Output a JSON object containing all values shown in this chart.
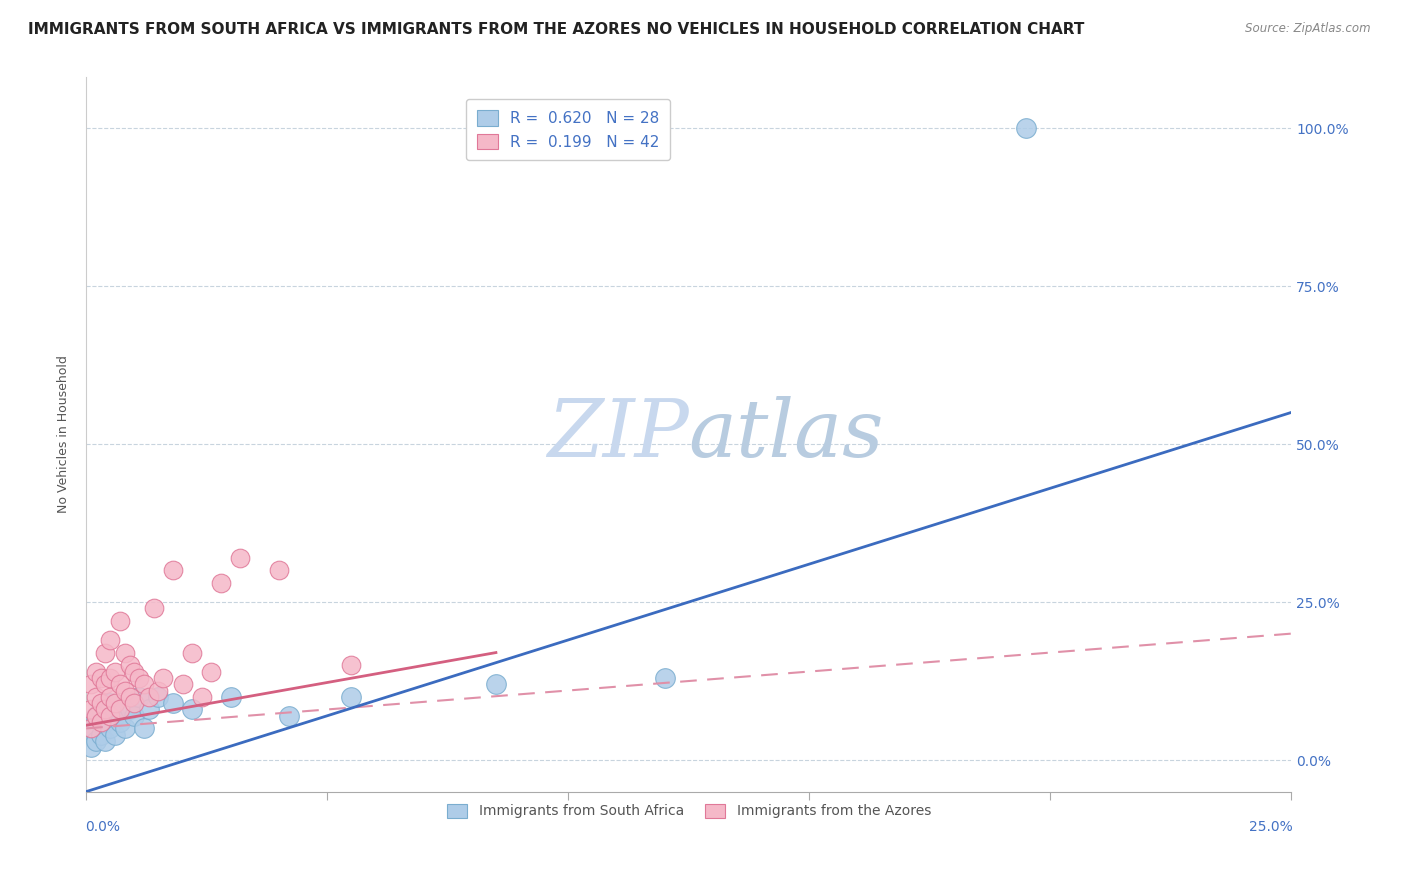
{
  "title": "IMMIGRANTS FROM SOUTH AFRICA VS IMMIGRANTS FROM THE AZORES NO VEHICLES IN HOUSEHOLD CORRELATION CHART",
  "source": "Source: ZipAtlas.com",
  "ylabel": "No Vehicles in Household",
  "ytick_labels": [
    "0.0%",
    "25.0%",
    "50.0%",
    "75.0%",
    "100.0%"
  ],
  "ytick_values": [
    0,
    0.25,
    0.5,
    0.75,
    1.0
  ],
  "xmin": 0.0,
  "xmax": 0.25,
  "ymin": -0.05,
  "ymax": 1.08,
  "legend_label_blue": "R =  0.620   N = 28",
  "legend_label_pink": "R =  0.199   N = 42",
  "legend_bottom_blue": "Immigrants from South Africa",
  "legend_bottom_pink": "Immigrants from the Azores",
  "blue_color": "#aecce8",
  "blue_edge": "#7aadcf",
  "pink_color": "#f5b8c8",
  "pink_edge": "#e07898",
  "blue_line_color": "#3b6bbf",
  "pink_line_color": "#d45f80",
  "pink_dash_color": "#e090a8",
  "watermark_color": "#dde8f5",
  "background_color": "#ffffff",
  "grid_color": "#c8d4de",
  "south_africa_x": [
    0.001,
    0.001,
    0.002,
    0.002,
    0.003,
    0.003,
    0.004,
    0.004,
    0.005,
    0.005,
    0.006,
    0.006,
    0.007,
    0.008,
    0.009,
    0.01,
    0.011,
    0.012,
    0.013,
    0.015,
    0.018,
    0.022,
    0.03,
    0.042,
    0.055,
    0.085,
    0.12,
    0.195
  ],
  "south_africa_y": [
    0.02,
    0.05,
    0.03,
    0.07,
    0.04,
    0.08,
    0.03,
    0.06,
    0.05,
    0.09,
    0.04,
    0.07,
    0.06,
    0.05,
    0.08,
    0.07,
    0.1,
    0.05,
    0.08,
    0.1,
    0.09,
    0.08,
    0.1,
    0.07,
    0.1,
    0.12,
    0.13,
    1.0
  ],
  "azores_x": [
    0.001,
    0.001,
    0.001,
    0.002,
    0.002,
    0.002,
    0.003,
    0.003,
    0.003,
    0.004,
    0.004,
    0.004,
    0.005,
    0.005,
    0.005,
    0.005,
    0.006,
    0.006,
    0.007,
    0.007,
    0.007,
    0.008,
    0.008,
    0.009,
    0.009,
    0.01,
    0.01,
    0.011,
    0.012,
    0.013,
    0.014,
    0.015,
    0.016,
    0.018,
    0.02,
    0.022,
    0.024,
    0.026,
    0.028,
    0.032,
    0.04,
    0.055
  ],
  "azores_y": [
    0.05,
    0.08,
    0.12,
    0.07,
    0.1,
    0.14,
    0.06,
    0.09,
    0.13,
    0.08,
    0.12,
    0.17,
    0.07,
    0.1,
    0.13,
    0.19,
    0.09,
    0.14,
    0.08,
    0.12,
    0.22,
    0.11,
    0.17,
    0.1,
    0.15,
    0.09,
    0.14,
    0.13,
    0.12,
    0.1,
    0.24,
    0.11,
    0.13,
    0.3,
    0.12,
    0.17,
    0.1,
    0.14,
    0.28,
    0.32,
    0.3,
    0.15
  ],
  "title_fontsize": 11,
  "axis_label_fontsize": 9,
  "legend_fontsize": 11,
  "tick_label_fontsize": 10
}
